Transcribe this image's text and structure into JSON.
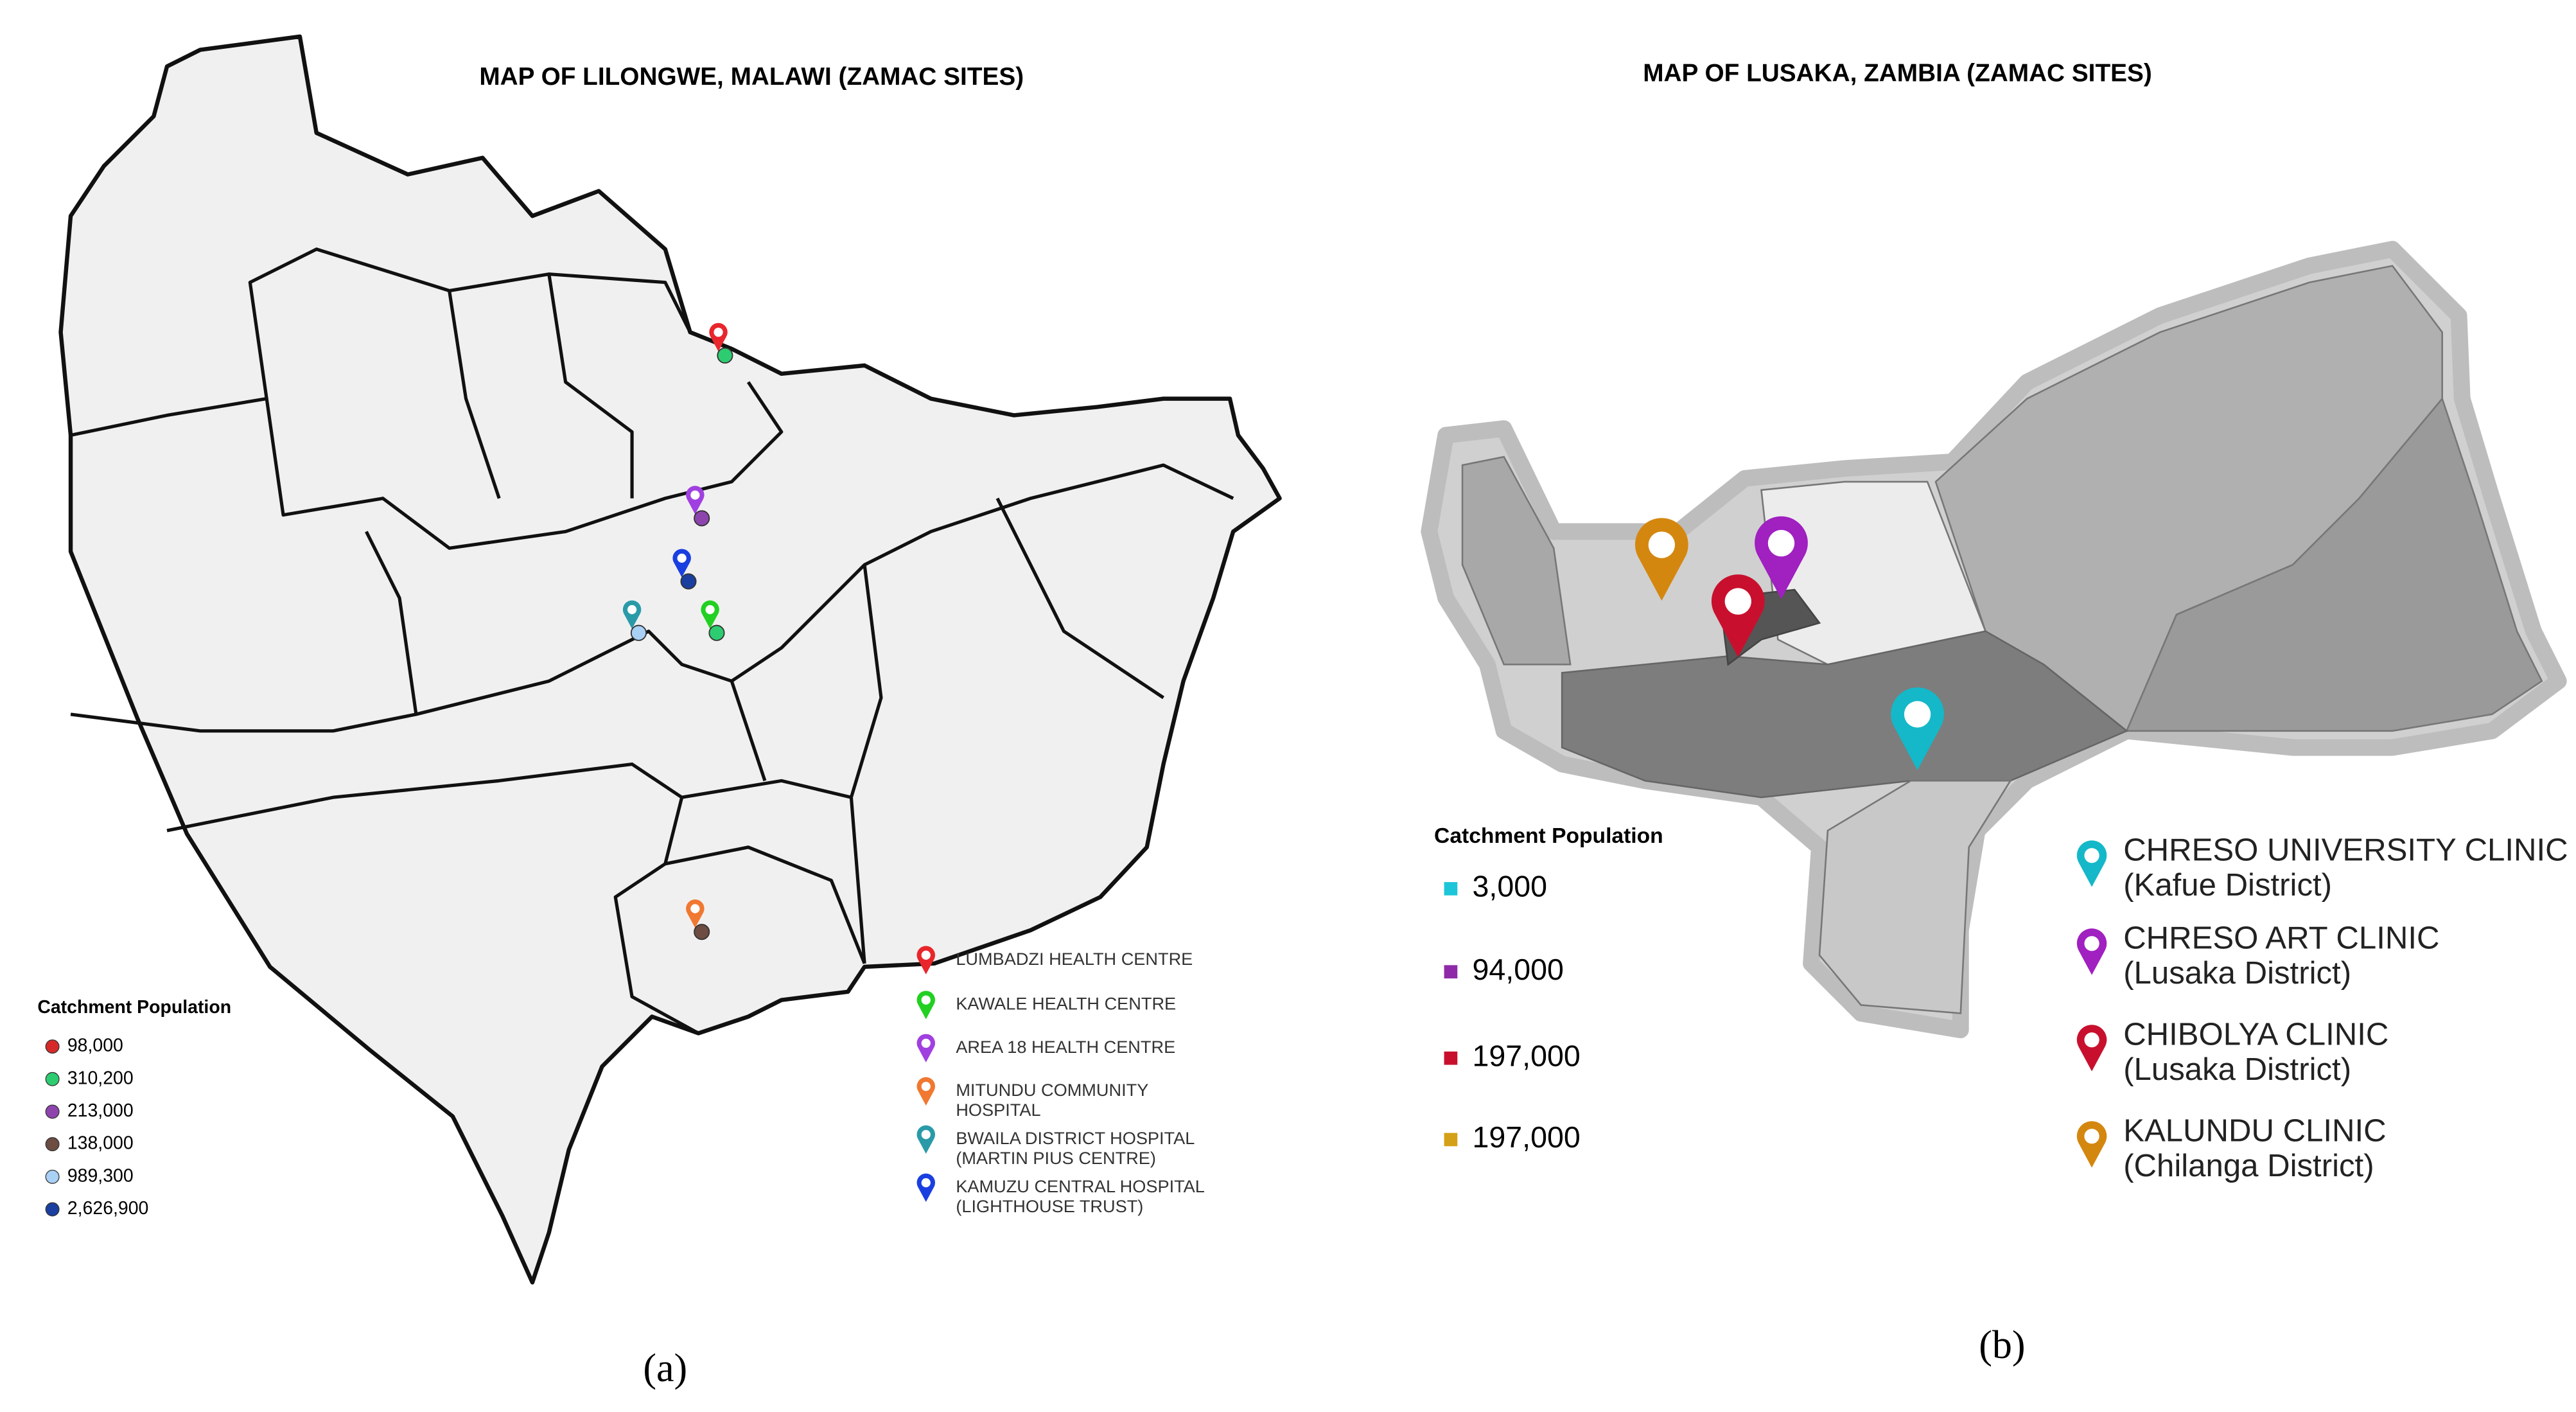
{
  "panel_a": {
    "title": "MAP OF LILONGWE, MALAWI (ZAMAC SITES)",
    "population_legend": {
      "title": "Catchment Population",
      "items": [
        {
          "label": "98,000",
          "color": "#d62a2a"
        },
        {
          "label": "310,200",
          "color": "#2ecc71"
        },
        {
          "label": "213,000",
          "color": "#8e44ad"
        },
        {
          "label": "138,000",
          "color": "#6d4c41"
        },
        {
          "label": "989,300",
          "color": "#a9d0f5"
        },
        {
          "label": "2,626,900",
          "color": "#1a3fa0"
        }
      ]
    },
    "sites": [
      {
        "lines": [
          "LUMBADZI HEALTH CENTRE"
        ],
        "color": "#e8262c"
      },
      {
        "lines": [
          "KAWALE HEALTH CENTRE"
        ],
        "color": "#22d022"
      },
      {
        "lines": [
          "AREA 18 HEALTH CENTRE"
        ],
        "color": "#a040e0"
      },
      {
        "lines": [
          "MITUNDU COMMUNITY",
          "HOSPITAL"
        ],
        "color": "#f07830"
      },
      {
        "lines": [
          "BWAILA DISTRICT HOSPITAL",
          "(MARTIN PIUS CENTRE)"
        ],
        "color": "#2a9aa8"
      },
      {
        "lines": [
          "KAMUZU CENTRAL HOSPITAL",
          "(LIGHTHOUSE TRUST)"
        ],
        "color": "#1a3fe0"
      }
    ],
    "caption": "(a)"
  },
  "panel_b": {
    "title": "MAP OF LUSAKA, ZAMBIA (ZAMAC SITES)",
    "population_legend": {
      "title": "Catchment Population",
      "items": [
        {
          "label": "3,000",
          "color": "#1cc6d8"
        },
        {
          "label": "94,000",
          "color": "#8e2aa8"
        },
        {
          "label": "197,000",
          "color": "#c8102e"
        },
        {
          "label": "197,000",
          "color": "#d4a017"
        }
      ]
    },
    "sites": [
      {
        "name": "CHRESO UNIVERSITY CLINIC",
        "district": "(Kafue District)",
        "color": "#14b8c8"
      },
      {
        "name": "CHRESO ART CLINIC",
        "district": "(Lusaka District)",
        "color": "#a020c0"
      },
      {
        "name": "CHIBOLYA CLINIC",
        "district": "(Lusaka District)",
        "color": "#c8102e"
      },
      {
        "name": "KALUNDU CLINIC",
        "district": "(Chilanga District)",
        "color": "#d4870f"
      }
    ],
    "caption": "(b)"
  }
}
